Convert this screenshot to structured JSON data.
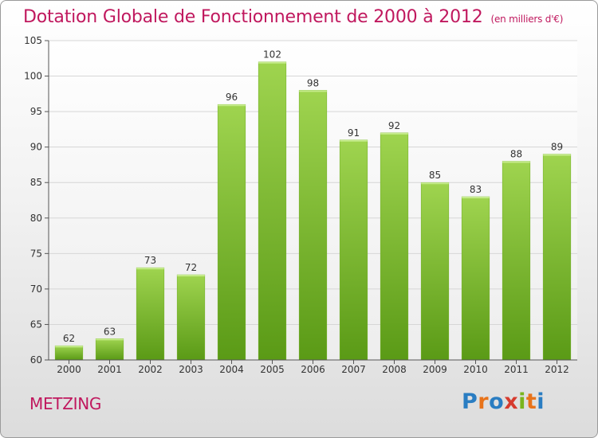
{
  "title": "Dotation Globale de Fonctionnement de 2000 à 2012",
  "subtitle": "(en milliers d'€)",
  "commune": "METZING",
  "logo": {
    "text": "Proxiti",
    "letters": [
      {
        "char": "P",
        "color": "#2a7dc2"
      },
      {
        "char": "r",
        "color": "#e8731a"
      },
      {
        "char": "o",
        "color": "#2a7dc2"
      },
      {
        "char": "x",
        "color": "#d63b2e"
      },
      {
        "char": "i",
        "color": "#7ab51d"
      },
      {
        "char": "t",
        "color": "#e8731a"
      },
      {
        "char": "i",
        "color": "#2a7dc2"
      }
    ]
  },
  "colors": {
    "accent": "#c0185e",
    "bar_light": "#9fd44f",
    "bar_dark": "#5a9a16",
    "grid": "#d6d6d6",
    "axis": "#555555"
  },
  "chart_data": {
    "type": "bar",
    "title": "Dotation Globale de Fonctionnement de 2000 à 2012",
    "subtitle": "(en milliers d'€)",
    "xlabel": "",
    "ylabel": "",
    "categories": [
      "2000",
      "2001",
      "2002",
      "2003",
      "2004",
      "2005",
      "2006",
      "2007",
      "2008",
      "2009",
      "2010",
      "2011",
      "2012"
    ],
    "values": [
      62,
      63,
      73,
      72,
      96,
      102,
      98,
      91,
      92,
      85,
      83,
      88,
      89
    ],
    "ylim": [
      60,
      105
    ],
    "yticks": [
      60,
      65,
      70,
      75,
      80,
      85,
      90,
      95,
      100,
      105
    ],
    "grid": true,
    "data_labels": true,
    "legend": "none"
  }
}
